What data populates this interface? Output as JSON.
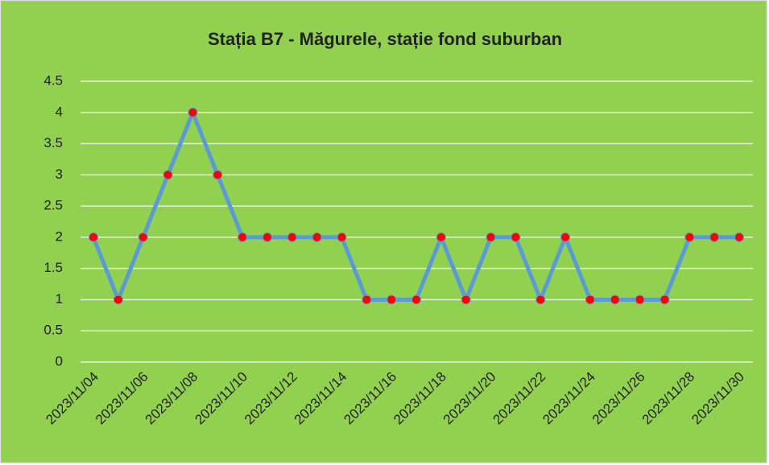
{
  "chart_data": {
    "type": "line",
    "title": "Stația B7 - Măgurele, stație fond suburban",
    "categories": [
      "2023/11/04",
      null,
      "2023/11/06",
      null,
      "2023/11/08",
      null,
      "2023/11/10",
      null,
      "2023/11/12",
      null,
      "2023/11/14",
      null,
      "2023/11/16",
      null,
      "2023/11/18",
      null,
      "2023/11/20",
      null,
      "2023/11/22",
      null,
      "2023/11/24",
      null,
      "2023/11/26",
      null,
      "2023/11/28",
      null,
      "2023/11/30"
    ],
    "values": [
      2,
      1,
      2,
      3,
      4,
      3,
      2,
      2,
      2,
      2,
      2,
      1,
      1,
      1,
      2,
      1,
      2,
      2,
      1,
      2,
      1,
      1,
      1,
      1,
      2,
      2,
      2
    ],
    "color": "#5b9bd5",
    "marker_color": "#ff0000",
    "ylim": [
      0,
      4.5
    ],
    "yticks": [
      0,
      0.5,
      1,
      1.5,
      2,
      2.5,
      3,
      3.5,
      4,
      4.5
    ],
    "grid": true
  }
}
